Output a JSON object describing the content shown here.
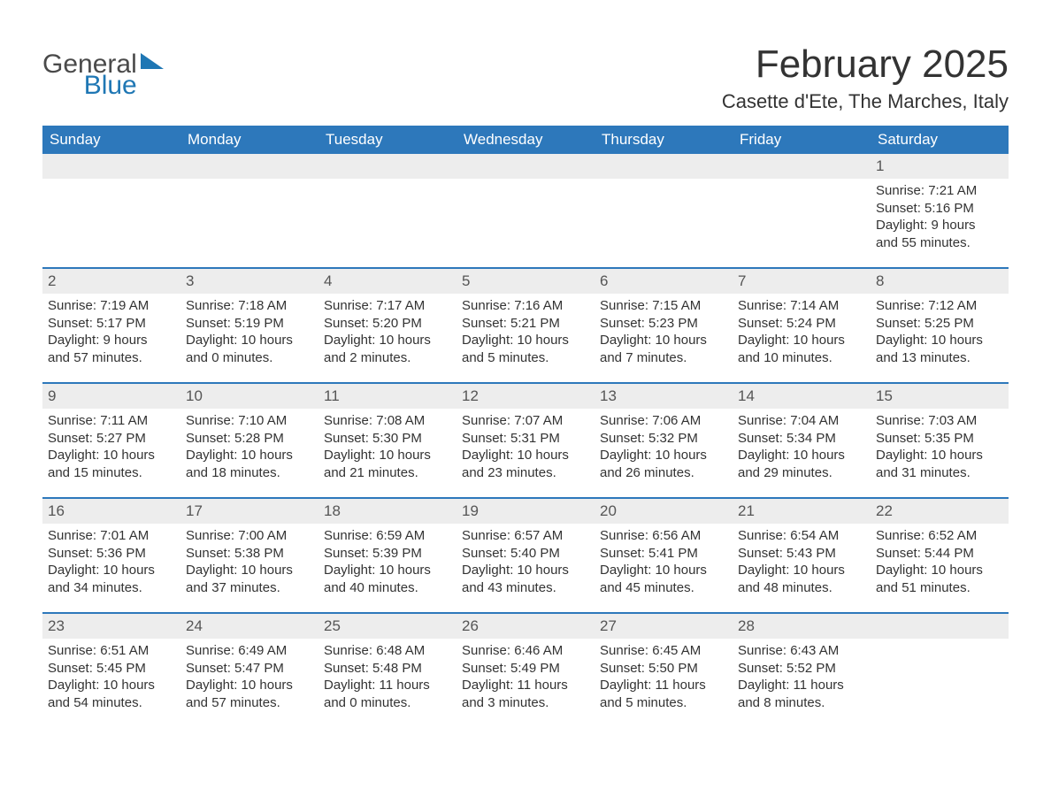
{
  "logo": {
    "text1": "General",
    "text2": "Blue"
  },
  "title": "February 2025",
  "location": "Casette d'Ete, The Marches, Italy",
  "colors": {
    "header_bg": "#2d78bb",
    "header_text": "#ffffff",
    "daynum_bg": "#ededed",
    "row_border": "#2d78bb",
    "text": "#333333",
    "logo_blue": "#1f77b4"
  },
  "day_headers": [
    "Sunday",
    "Monday",
    "Tuesday",
    "Wednesday",
    "Thursday",
    "Friday",
    "Saturday"
  ],
  "weeks": [
    [
      {
        "num": "",
        "lines": []
      },
      {
        "num": "",
        "lines": []
      },
      {
        "num": "",
        "lines": []
      },
      {
        "num": "",
        "lines": []
      },
      {
        "num": "",
        "lines": []
      },
      {
        "num": "",
        "lines": []
      },
      {
        "num": "1",
        "lines": [
          "Sunrise: 7:21 AM",
          "Sunset: 5:16 PM",
          "Daylight: 9 hours",
          "and 55 minutes."
        ]
      }
    ],
    [
      {
        "num": "2",
        "lines": [
          "Sunrise: 7:19 AM",
          "Sunset: 5:17 PM",
          "Daylight: 9 hours",
          "and 57 minutes."
        ]
      },
      {
        "num": "3",
        "lines": [
          "Sunrise: 7:18 AM",
          "Sunset: 5:19 PM",
          "Daylight: 10 hours",
          "and 0 minutes."
        ]
      },
      {
        "num": "4",
        "lines": [
          "Sunrise: 7:17 AM",
          "Sunset: 5:20 PM",
          "Daylight: 10 hours",
          "and 2 minutes."
        ]
      },
      {
        "num": "5",
        "lines": [
          "Sunrise: 7:16 AM",
          "Sunset: 5:21 PM",
          "Daylight: 10 hours",
          "and 5 minutes."
        ]
      },
      {
        "num": "6",
        "lines": [
          "Sunrise: 7:15 AM",
          "Sunset: 5:23 PM",
          "Daylight: 10 hours",
          "and 7 minutes."
        ]
      },
      {
        "num": "7",
        "lines": [
          "Sunrise: 7:14 AM",
          "Sunset: 5:24 PM",
          "Daylight: 10 hours",
          "and 10 minutes."
        ]
      },
      {
        "num": "8",
        "lines": [
          "Sunrise: 7:12 AM",
          "Sunset: 5:25 PM",
          "Daylight: 10 hours",
          "and 13 minutes."
        ]
      }
    ],
    [
      {
        "num": "9",
        "lines": [
          "Sunrise: 7:11 AM",
          "Sunset: 5:27 PM",
          "Daylight: 10 hours",
          "and 15 minutes."
        ]
      },
      {
        "num": "10",
        "lines": [
          "Sunrise: 7:10 AM",
          "Sunset: 5:28 PM",
          "Daylight: 10 hours",
          "and 18 minutes."
        ]
      },
      {
        "num": "11",
        "lines": [
          "Sunrise: 7:08 AM",
          "Sunset: 5:30 PM",
          "Daylight: 10 hours",
          "and 21 minutes."
        ]
      },
      {
        "num": "12",
        "lines": [
          "Sunrise: 7:07 AM",
          "Sunset: 5:31 PM",
          "Daylight: 10 hours",
          "and 23 minutes."
        ]
      },
      {
        "num": "13",
        "lines": [
          "Sunrise: 7:06 AM",
          "Sunset: 5:32 PM",
          "Daylight: 10 hours",
          "and 26 minutes."
        ]
      },
      {
        "num": "14",
        "lines": [
          "Sunrise: 7:04 AM",
          "Sunset: 5:34 PM",
          "Daylight: 10 hours",
          "and 29 minutes."
        ]
      },
      {
        "num": "15",
        "lines": [
          "Sunrise: 7:03 AM",
          "Sunset: 5:35 PM",
          "Daylight: 10 hours",
          "and 31 minutes."
        ]
      }
    ],
    [
      {
        "num": "16",
        "lines": [
          "Sunrise: 7:01 AM",
          "Sunset: 5:36 PM",
          "Daylight: 10 hours",
          "and 34 minutes."
        ]
      },
      {
        "num": "17",
        "lines": [
          "Sunrise: 7:00 AM",
          "Sunset: 5:38 PM",
          "Daylight: 10 hours",
          "and 37 minutes."
        ]
      },
      {
        "num": "18",
        "lines": [
          "Sunrise: 6:59 AM",
          "Sunset: 5:39 PM",
          "Daylight: 10 hours",
          "and 40 minutes."
        ]
      },
      {
        "num": "19",
        "lines": [
          "Sunrise: 6:57 AM",
          "Sunset: 5:40 PM",
          "Daylight: 10 hours",
          "and 43 minutes."
        ]
      },
      {
        "num": "20",
        "lines": [
          "Sunrise: 6:56 AM",
          "Sunset: 5:41 PM",
          "Daylight: 10 hours",
          "and 45 minutes."
        ]
      },
      {
        "num": "21",
        "lines": [
          "Sunrise: 6:54 AM",
          "Sunset: 5:43 PM",
          "Daylight: 10 hours",
          "and 48 minutes."
        ]
      },
      {
        "num": "22",
        "lines": [
          "Sunrise: 6:52 AM",
          "Sunset: 5:44 PM",
          "Daylight: 10 hours",
          "and 51 minutes."
        ]
      }
    ],
    [
      {
        "num": "23",
        "lines": [
          "Sunrise: 6:51 AM",
          "Sunset: 5:45 PM",
          "Daylight: 10 hours",
          "and 54 minutes."
        ]
      },
      {
        "num": "24",
        "lines": [
          "Sunrise: 6:49 AM",
          "Sunset: 5:47 PM",
          "Daylight: 10 hours",
          "and 57 minutes."
        ]
      },
      {
        "num": "25",
        "lines": [
          "Sunrise: 6:48 AM",
          "Sunset: 5:48 PM",
          "Daylight: 11 hours",
          "and 0 minutes."
        ]
      },
      {
        "num": "26",
        "lines": [
          "Sunrise: 6:46 AM",
          "Sunset: 5:49 PM",
          "Daylight: 11 hours",
          "and 3 minutes."
        ]
      },
      {
        "num": "27",
        "lines": [
          "Sunrise: 6:45 AM",
          "Sunset: 5:50 PM",
          "Daylight: 11 hours",
          "and 5 minutes."
        ]
      },
      {
        "num": "28",
        "lines": [
          "Sunrise: 6:43 AM",
          "Sunset: 5:52 PM",
          "Daylight: 11 hours",
          "and 8 minutes."
        ]
      },
      {
        "num": "",
        "lines": []
      }
    ]
  ]
}
